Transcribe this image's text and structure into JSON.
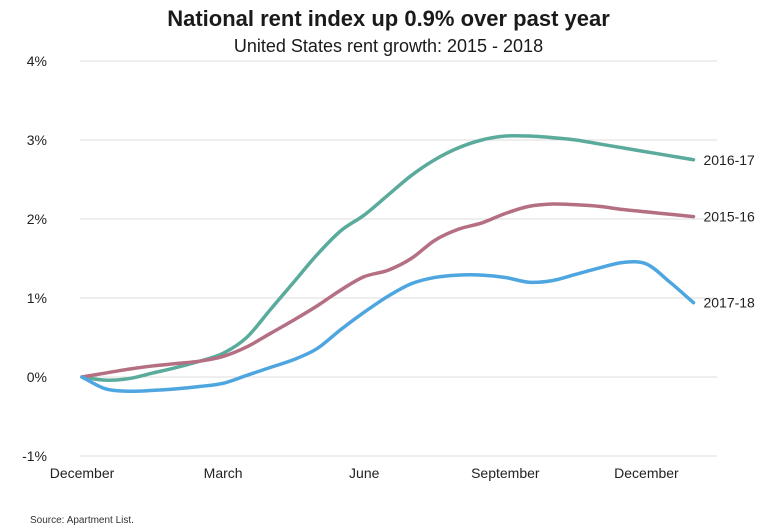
{
  "chart_data": {
    "type": "line",
    "title": "National rent index up 0.9% over past year",
    "subtitle": "United States rent growth: 2015 - 2018",
    "source": "Source: Apartment List.",
    "x_tick_labels": [
      "December",
      "March",
      "June",
      "September",
      "December"
    ],
    "x_tick_positions": [
      0,
      3,
      6,
      9,
      12
    ],
    "y_tick_labels": [
      "4%",
      "3%",
      "2%",
      "1%",
      "0%",
      "-1%"
    ],
    "y_tick_values": [
      4,
      3,
      2,
      1,
      0,
      -1
    ],
    "ylim": [
      -1,
      4
    ],
    "xlim": [
      0,
      13.5
    ],
    "grid": true,
    "series": [
      {
        "name": "2016-17",
        "color": "#5aab9c",
        "x": [
          0,
          0.5,
          1,
          1.5,
          2,
          2.5,
          3,
          3.5,
          4,
          4.5,
          5,
          5.5,
          6,
          6.5,
          7,
          7.5,
          8,
          8.5,
          9,
          9.5,
          10,
          10.5,
          11,
          11.5,
          12,
          12.5,
          13
        ],
        "values": [
          0,
          -0.04,
          -0.02,
          0.05,
          0.12,
          0.2,
          0.3,
          0.5,
          0.85,
          1.2,
          1.55,
          1.85,
          2.05,
          2.3,
          2.55,
          2.75,
          2.9,
          3.0,
          3.05,
          3.05,
          3.03,
          3.0,
          2.95,
          2.9,
          2.85,
          2.8,
          2.75
        ]
      },
      {
        "name": "2015-16",
        "color": "#b56f82",
        "x": [
          0,
          0.5,
          1,
          1.5,
          2,
          2.5,
          3,
          3.5,
          4,
          4.5,
          5,
          5.5,
          6,
          6.5,
          7,
          7.5,
          8,
          8.5,
          9,
          9.5,
          10,
          10.5,
          11,
          11.5,
          12,
          12.5,
          13
        ],
        "values": [
          0,
          0.05,
          0.1,
          0.14,
          0.17,
          0.2,
          0.26,
          0.38,
          0.55,
          0.72,
          0.9,
          1.1,
          1.27,
          1.35,
          1.5,
          1.73,
          1.87,
          1.95,
          2.07,
          2.16,
          2.19,
          2.18,
          2.16,
          2.12,
          2.09,
          2.06,
          2.03
        ]
      },
      {
        "name": "2017-18",
        "color": "#4ea6e0",
        "x": [
          0,
          0.5,
          1,
          1.5,
          2,
          2.5,
          3,
          3.5,
          4,
          4.5,
          5,
          5.5,
          6,
          6.5,
          7,
          7.5,
          8,
          8.5,
          9,
          9.5,
          10,
          10.5,
          11,
          11.5,
          12,
          12.5,
          13
        ],
        "values": [
          0,
          -0.15,
          -0.18,
          -0.17,
          -0.15,
          -0.12,
          -0.08,
          0.02,
          0.12,
          0.22,
          0.36,
          0.6,
          0.82,
          1.02,
          1.18,
          1.26,
          1.29,
          1.29,
          1.26,
          1.2,
          1.22,
          1.3,
          1.38,
          1.45,
          1.43,
          1.2,
          0.94
        ]
      }
    ]
  }
}
